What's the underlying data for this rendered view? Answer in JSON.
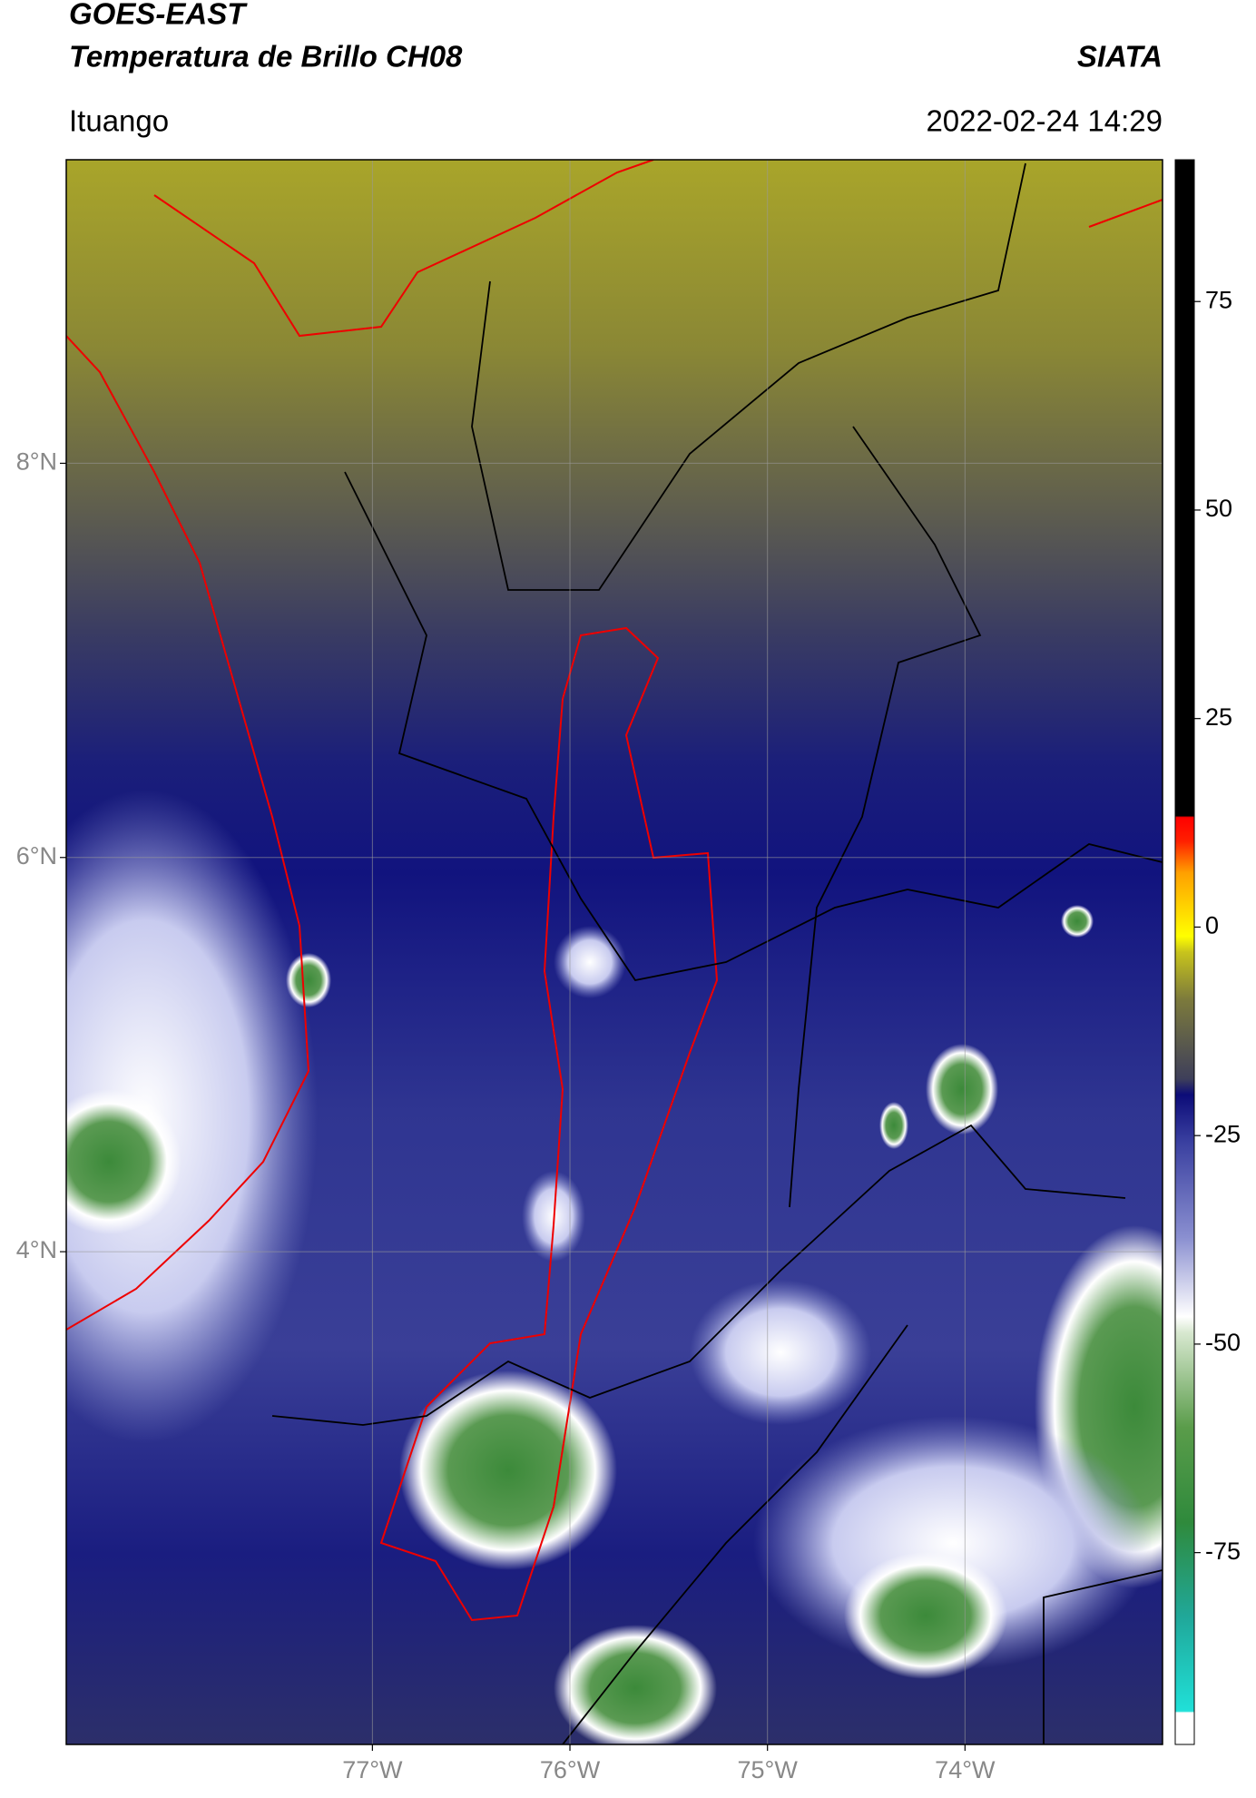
{
  "header": {
    "satellite": "GOES-EAST",
    "product": "Temperatura de Brillo CH08",
    "agency": "SIATA",
    "region": "Ituango",
    "datetime": "2022-02-24 14:29"
  },
  "chart_data": {
    "type": "map",
    "xlim": [
      -78.55,
      -73.0
    ],
    "ylim": [
      1.5,
      9.54
    ],
    "xticks": [
      {
        "value": -77,
        "label": "77°W"
      },
      {
        "value": -76,
        "label": "76°W"
      },
      {
        "value": -75,
        "label": "75°W"
      },
      {
        "value": -74,
        "label": "74°W"
      }
    ],
    "yticks": [
      {
        "value": 4,
        "label": "4°N"
      },
      {
        "value": 6,
        "label": "6°N"
      },
      {
        "value": 8,
        "label": "8°N"
      }
    ],
    "grid": true,
    "colorbar": {
      "lim": [
        -98,
        92
      ],
      "ticks": [
        -75,
        -50,
        -25,
        0,
        25,
        50,
        75
      ]
    }
  }
}
